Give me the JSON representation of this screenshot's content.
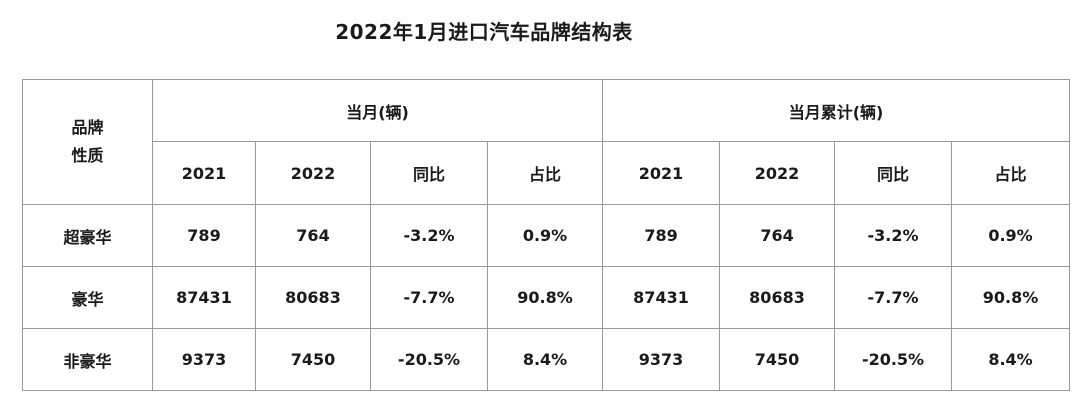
{
  "title": "2022年1月进口汽车品牌结构表",
  "table": {
    "corner": [
      "品牌",
      "性质"
    ],
    "groups": [
      "当月(辆)",
      "当月累计(辆)"
    ],
    "sub_headers": [
      "2021",
      "2022",
      "同比",
      "占比",
      "2021",
      "2022",
      "同比",
      "占比"
    ],
    "rows": [
      {
        "label": "超豪华",
        "cells": [
          "789",
          "764",
          "-3.2%",
          "0.9%",
          "789",
          "764",
          "-3.2%",
          "0.9%"
        ]
      },
      {
        "label": "豪华",
        "cells": [
          "87431",
          "80683",
          "-7.7%",
          "90.8%",
          "87431",
          "80683",
          "-7.7%",
          "90.8%"
        ]
      },
      {
        "label": "非豪华",
        "cells": [
          "9373",
          "7450",
          "-20.5%",
          "8.4%",
          "9373",
          "7450",
          "-20.5%",
          "8.4%"
        ]
      }
    ]
  }
}
